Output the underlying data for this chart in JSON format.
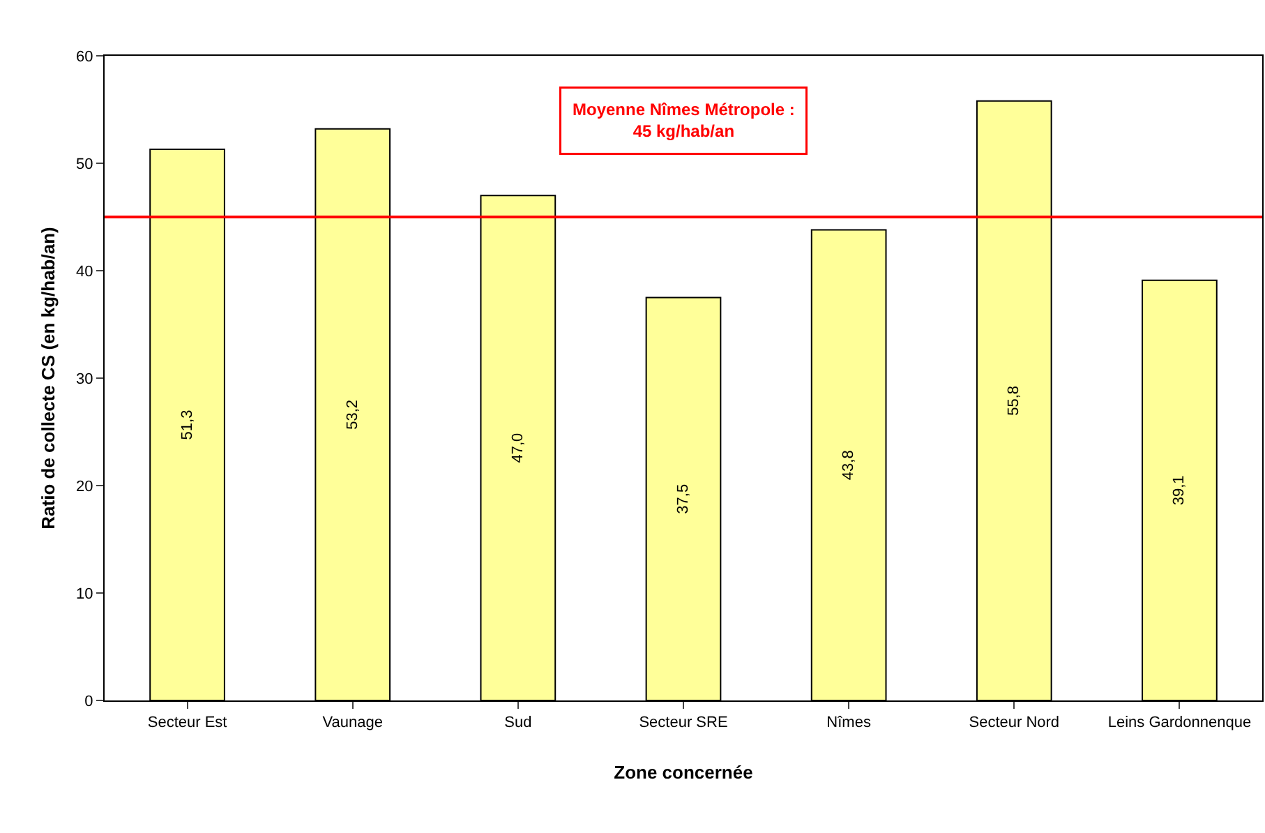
{
  "chart_data": {
    "type": "bar",
    "xlabel": "Zone concernée",
    "ylabel": "Ratio de collecte CS (en kg/hab/an)",
    "categories": [
      "Secteur Est",
      "Vaunage",
      "Sud",
      "Secteur SRE",
      "Nîmes",
      "Secteur Nord",
      "Leins Gardonnenque"
    ],
    "values": [
      51.3,
      53.2,
      47.0,
      37.5,
      43.8,
      55.8,
      39.1
    ],
    "value_labels": [
      "51,3",
      "53,2",
      "47,0",
      "37,5",
      "43,8",
      "55,8",
      "39,1"
    ],
    "color": "#ffff99",
    "ylim": [
      0,
      60
    ],
    "yticks": [
      0,
      10,
      20,
      30,
      40,
      50,
      60
    ],
    "grid": false,
    "ref_lines": [
      {
        "axis": "y",
        "value": 45,
        "label": "Moyenne Nîmes Métropole :\n45 kg/hab/an",
        "color": "#ff0000"
      }
    ]
  }
}
